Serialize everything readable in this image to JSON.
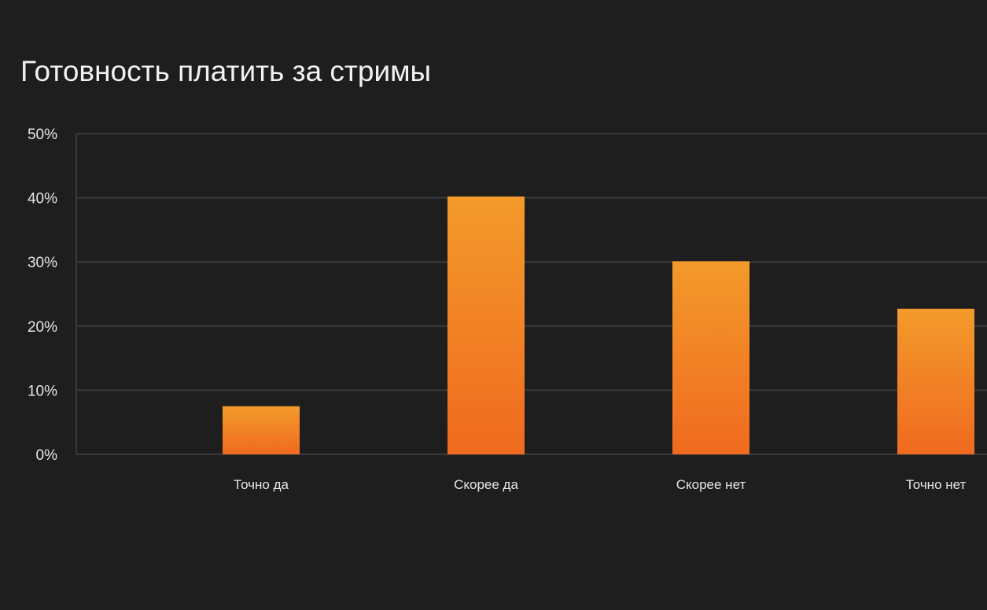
{
  "chart_data": {
    "type": "bar",
    "title": "Готовность платить за стримы",
    "xlabel": "",
    "ylabel": "",
    "categories": [
      "Точно да",
      "Скорее да",
      "Скорее нет",
      "Точно нет"
    ],
    "values": [
      7.5,
      40.2,
      30.1,
      22.7
    ],
    "ylim": [
      0,
      50
    ],
    "yticks": [
      0,
      10,
      20,
      30,
      40,
      50
    ],
    "ytick_labels": [
      "0%",
      "10%",
      "20%",
      "30%",
      "40%",
      "50%"
    ],
    "grid": true,
    "legend": "none",
    "colors": {
      "background": "#1e1e1e",
      "bar_top": "#f39a2b",
      "bar_bottom": "#f06a1f",
      "grid": "#3a3a3a",
      "text": "#e6e6e6"
    }
  }
}
